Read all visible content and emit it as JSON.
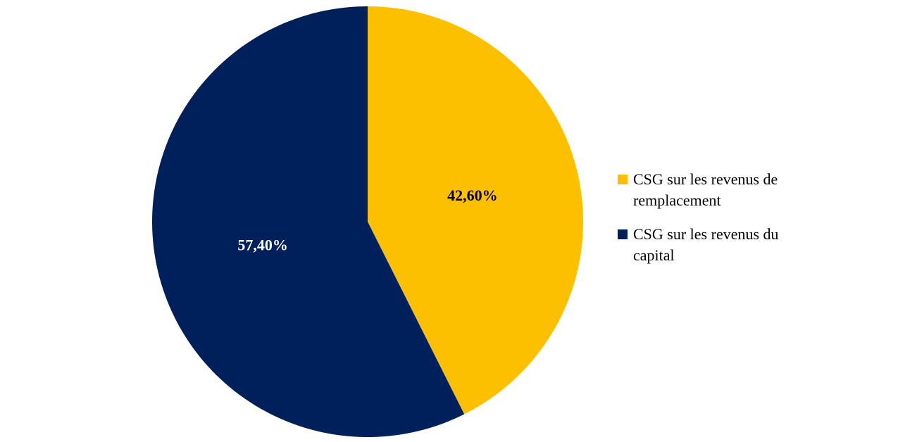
{
  "chart_data": {
    "type": "pie",
    "series": [
      {
        "name": "CSG sur les revenus de remplacement",
        "color": "#fdc000",
        "values": [
          42.6
        ],
        "value_labels": [
          "42,60%"
        ],
        "label_color": "#000000"
      },
      {
        "name": "CSG sur les revenus du capital",
        "color": "#00205b",
        "values": [
          57.4
        ],
        "value_labels": [
          "57,40%"
        ],
        "label_color": "#ffffff"
      }
    ]
  }
}
